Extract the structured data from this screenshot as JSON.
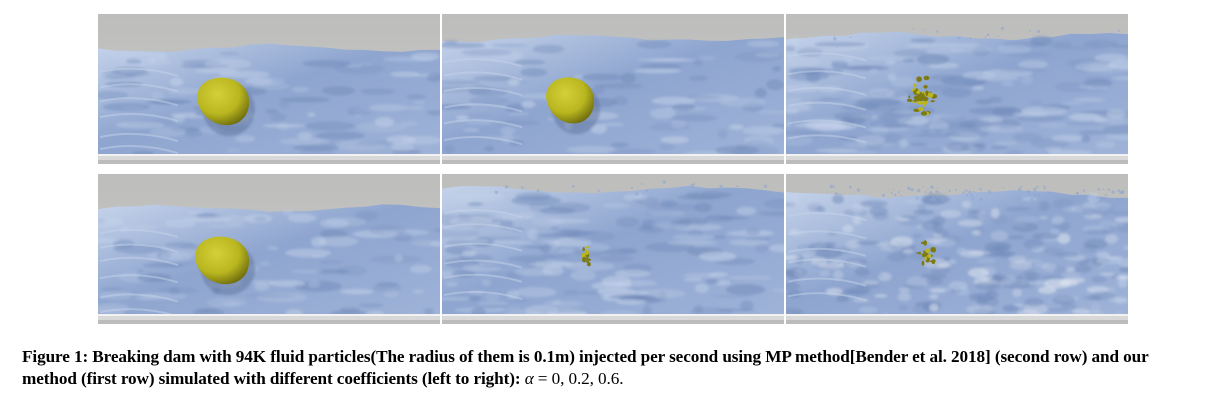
{
  "figure": {
    "panels": [
      {
        "row": "first",
        "alpha": "0",
        "label": "our method, α = 0",
        "ball_state": "intact",
        "spray": "low"
      },
      {
        "row": "first",
        "alpha": "0.2",
        "label": "our method, α = 0.2",
        "ball_state": "intact",
        "spray": "low"
      },
      {
        "row": "first",
        "alpha": "0.6",
        "label": "our method, α = 0.6",
        "ball_state": "fragmented",
        "spray": "medium"
      },
      {
        "row": "second",
        "alpha": "0",
        "label": "MP method, α = 0",
        "ball_state": "intact",
        "spray": "low"
      },
      {
        "row": "second",
        "alpha": "0.2",
        "label": "MP method, α = 0.2",
        "ball_state": "dissolved",
        "spray": "medium"
      },
      {
        "row": "second",
        "alpha": "0.6",
        "label": "MP method, α = 0.6",
        "ball_state": "scattered",
        "spray": "high"
      }
    ],
    "colors": {
      "background_gray": "#c9c9c8",
      "water_blue": "#8ea5cf",
      "water_highlight": "#c5d3ea",
      "water_shadow": "#6f89b8",
      "foam": "#e4e9f2",
      "ball_yellow": "#b9b61f",
      "ball_shadow": "#6f6d0e",
      "floor": "#d8d8d8"
    }
  },
  "caption": {
    "label": "Figure 1:",
    "text": " Breaking dam with 94K fluid particles(The radius of them is 0.1m) injected per second using MP method[Bender et al. 2018] (second row) and our method (first row) simulated with different coefficients (left to right): ",
    "math_var": "α",
    "math_rest": " = 0, 0.2, 0.6."
  }
}
